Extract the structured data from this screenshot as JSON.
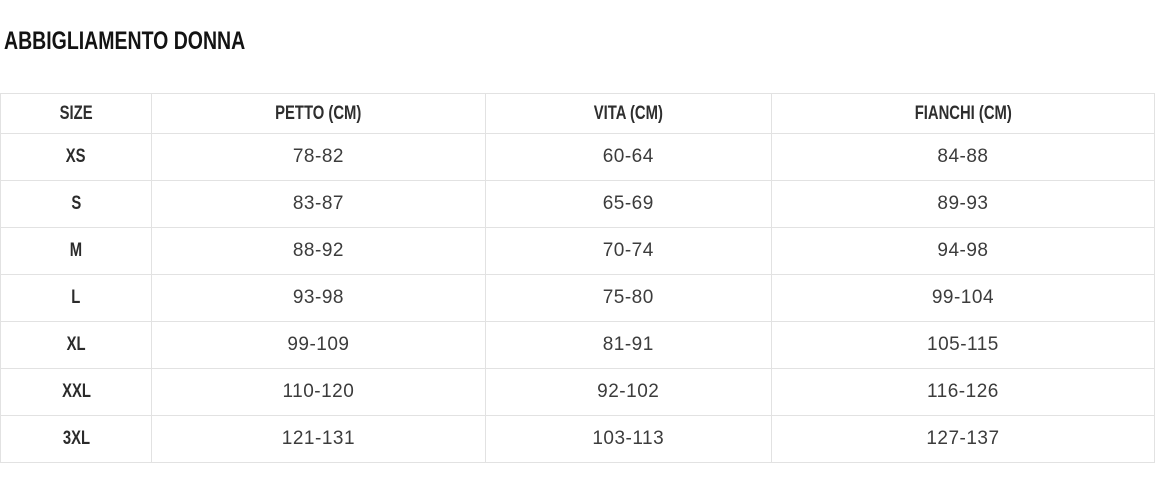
{
  "page": {
    "title": "ABBIGLIAMENTO DONNA"
  },
  "table": {
    "columns": [
      "SIZE",
      "PETTO (CM)",
      "VITA (CM)",
      "FIANCHI (CM)"
    ],
    "rows": [
      [
        "XS",
        "78-82",
        "60-64",
        "84-88"
      ],
      [
        "S",
        "83-87",
        "65-69",
        "89-93"
      ],
      [
        "M",
        "88-92",
        "70-74",
        "94-98"
      ],
      [
        "L",
        "93-98",
        "75-80",
        "99-104"
      ],
      [
        "XL",
        "99-109",
        "81-91",
        "105-115"
      ],
      [
        "XXL",
        "110-120",
        "92-102",
        "116-126"
      ],
      [
        "3XL",
        "121-131",
        "103-113",
        "127-137"
      ]
    ]
  },
  "colors": {
    "background": "#ffffff",
    "border": "#e2e2e2",
    "title_text": "#131313",
    "header_text": "#2e2e2e",
    "data_text": "#3c3c3c"
  }
}
